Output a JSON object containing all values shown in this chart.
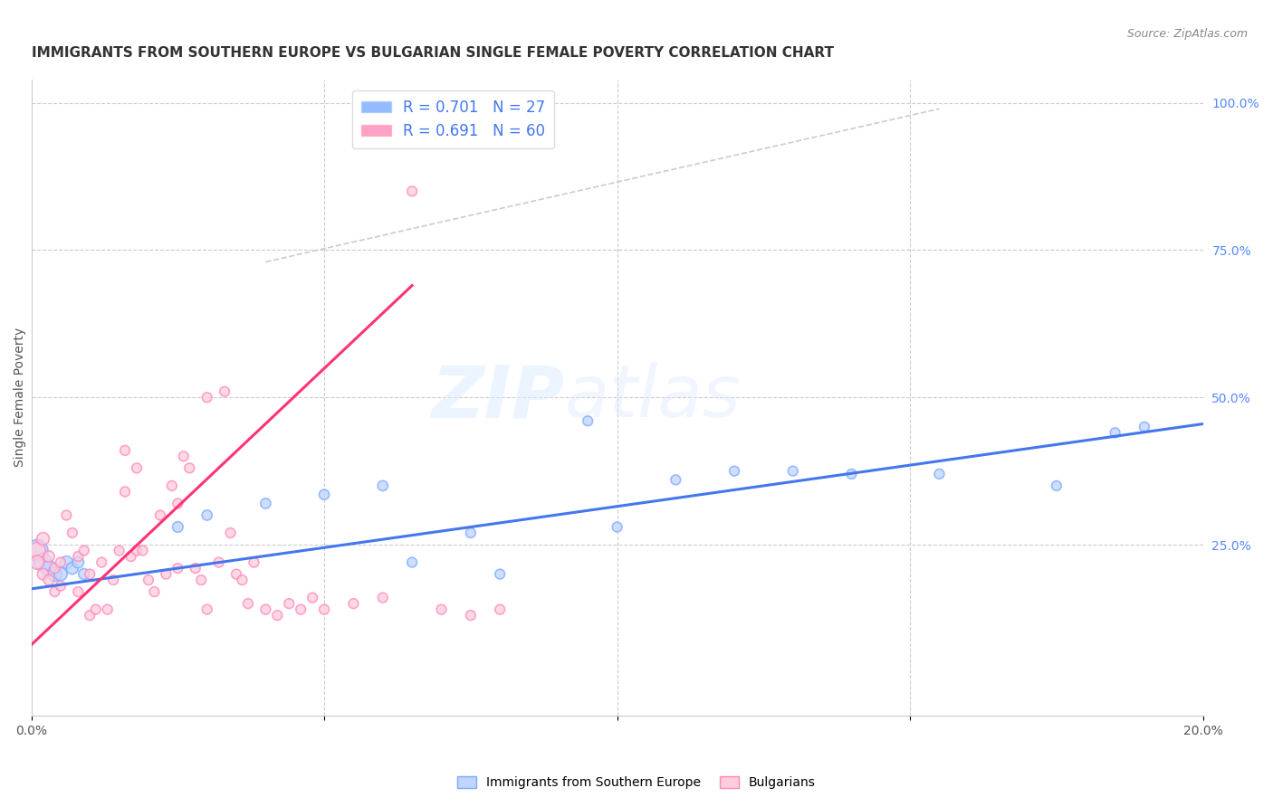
{
  "title": "IMMIGRANTS FROM SOUTHERN EUROPE VS BULGARIAN SINGLE FEMALE POVERTY CORRELATION CHART",
  "source": "Source: ZipAtlas.com",
  "ylabel": "Single Female Poverty",
  "right_yticks": [
    "100.0%",
    "75.0%",
    "50.0%",
    "25.0%"
  ],
  "right_ytick_vals": [
    1.0,
    0.75,
    0.5,
    0.25
  ],
  "xlim": [
    0.0,
    0.2
  ],
  "ylim": [
    -0.04,
    1.04
  ],
  "legend1_label": "R = 0.701   N = 27",
  "legend2_label": "R = 0.691   N = 60",
  "legend_color1": "#7aaaff",
  "legend_color2": "#ff88bb",
  "watermark_zip": "ZIP",
  "watermark_atlas": "atlas",
  "background_color": "#ffffff",
  "grid_color": "#cccccc",
  "blue_scatter": {
    "x": [
      0.001,
      0.002,
      0.003,
      0.004,
      0.005,
      0.006,
      0.007,
      0.008,
      0.009,
      0.025,
      0.03,
      0.04,
      0.05,
      0.06,
      0.065,
      0.075,
      0.08,
      0.095,
      0.1,
      0.11,
      0.12,
      0.13,
      0.14,
      0.155,
      0.175,
      0.185,
      0.19
    ],
    "y": [
      0.24,
      0.22,
      0.21,
      0.2,
      0.2,
      0.22,
      0.21,
      0.22,
      0.2,
      0.28,
      0.3,
      0.32,
      0.335,
      0.35,
      0.22,
      0.27,
      0.2,
      0.46,
      0.28,
      0.36,
      0.375,
      0.375,
      0.37,
      0.37,
      0.35,
      0.44,
      0.45
    ],
    "sizes": [
      300,
      200,
      150,
      130,
      110,
      100,
      90,
      80,
      75,
      70,
      65,
      65,
      65,
      65,
      60,
      60,
      60,
      60,
      60,
      60,
      60,
      60,
      60,
      60,
      60,
      60,
      60
    ],
    "color": "#c0d4ff",
    "edgecolor": "#7aaaff",
    "alpha": 0.75
  },
  "pink_scatter": {
    "x": [
      0.001,
      0.001,
      0.002,
      0.002,
      0.003,
      0.003,
      0.004,
      0.004,
      0.005,
      0.005,
      0.006,
      0.007,
      0.008,
      0.008,
      0.009,
      0.01,
      0.01,
      0.011,
      0.012,
      0.013,
      0.014,
      0.015,
      0.016,
      0.016,
      0.017,
      0.018,
      0.018,
      0.019,
      0.02,
      0.021,
      0.022,
      0.023,
      0.024,
      0.025,
      0.025,
      0.026,
      0.027,
      0.028,
      0.029,
      0.03,
      0.03,
      0.032,
      0.033,
      0.034,
      0.035,
      0.036,
      0.037,
      0.038,
      0.04,
      0.042,
      0.044,
      0.046,
      0.048,
      0.05,
      0.055,
      0.06,
      0.065,
      0.07,
      0.075,
      0.08
    ],
    "y": [
      0.24,
      0.22,
      0.26,
      0.2,
      0.23,
      0.19,
      0.21,
      0.17,
      0.22,
      0.18,
      0.3,
      0.27,
      0.23,
      0.17,
      0.24,
      0.2,
      0.13,
      0.14,
      0.22,
      0.14,
      0.19,
      0.24,
      0.41,
      0.34,
      0.23,
      0.38,
      0.24,
      0.24,
      0.19,
      0.17,
      0.3,
      0.2,
      0.35,
      0.21,
      0.32,
      0.4,
      0.38,
      0.21,
      0.19,
      0.14,
      0.5,
      0.22,
      0.51,
      0.27,
      0.2,
      0.19,
      0.15,
      0.22,
      0.14,
      0.13,
      0.15,
      0.14,
      0.16,
      0.14,
      0.15,
      0.16,
      0.85,
      0.14,
      0.13,
      0.14
    ],
    "sizes": [
      180,
      120,
      100,
      80,
      80,
      70,
      65,
      60,
      60,
      60,
      60,
      60,
      60,
      60,
      60,
      60,
      60,
      60,
      60,
      60,
      60,
      60,
      60,
      60,
      60,
      60,
      60,
      60,
      60,
      60,
      60,
      60,
      60,
      60,
      60,
      60,
      60,
      60,
      60,
      60,
      60,
      60,
      60,
      60,
      60,
      60,
      60,
      60,
      60,
      60,
      60,
      60,
      60,
      60,
      60,
      60,
      60,
      60,
      60,
      60
    ],
    "color": "#ffccdd",
    "edgecolor": "#ff88bb",
    "alpha": 0.75
  },
  "blue_line": {
    "x": [
      0.0,
      0.2
    ],
    "y": [
      0.175,
      0.455
    ]
  },
  "pink_line": {
    "x": [
      0.0,
      0.065
    ],
    "y": [
      0.08,
      0.69
    ]
  },
  "diagonal_line": {
    "x": [
      0.04,
      0.155
    ],
    "y": [
      0.73,
      0.99
    ]
  },
  "title_fontsize": 11,
  "label_fontsize": 10,
  "tick_fontsize": 10,
  "source_fontsize": 9
}
